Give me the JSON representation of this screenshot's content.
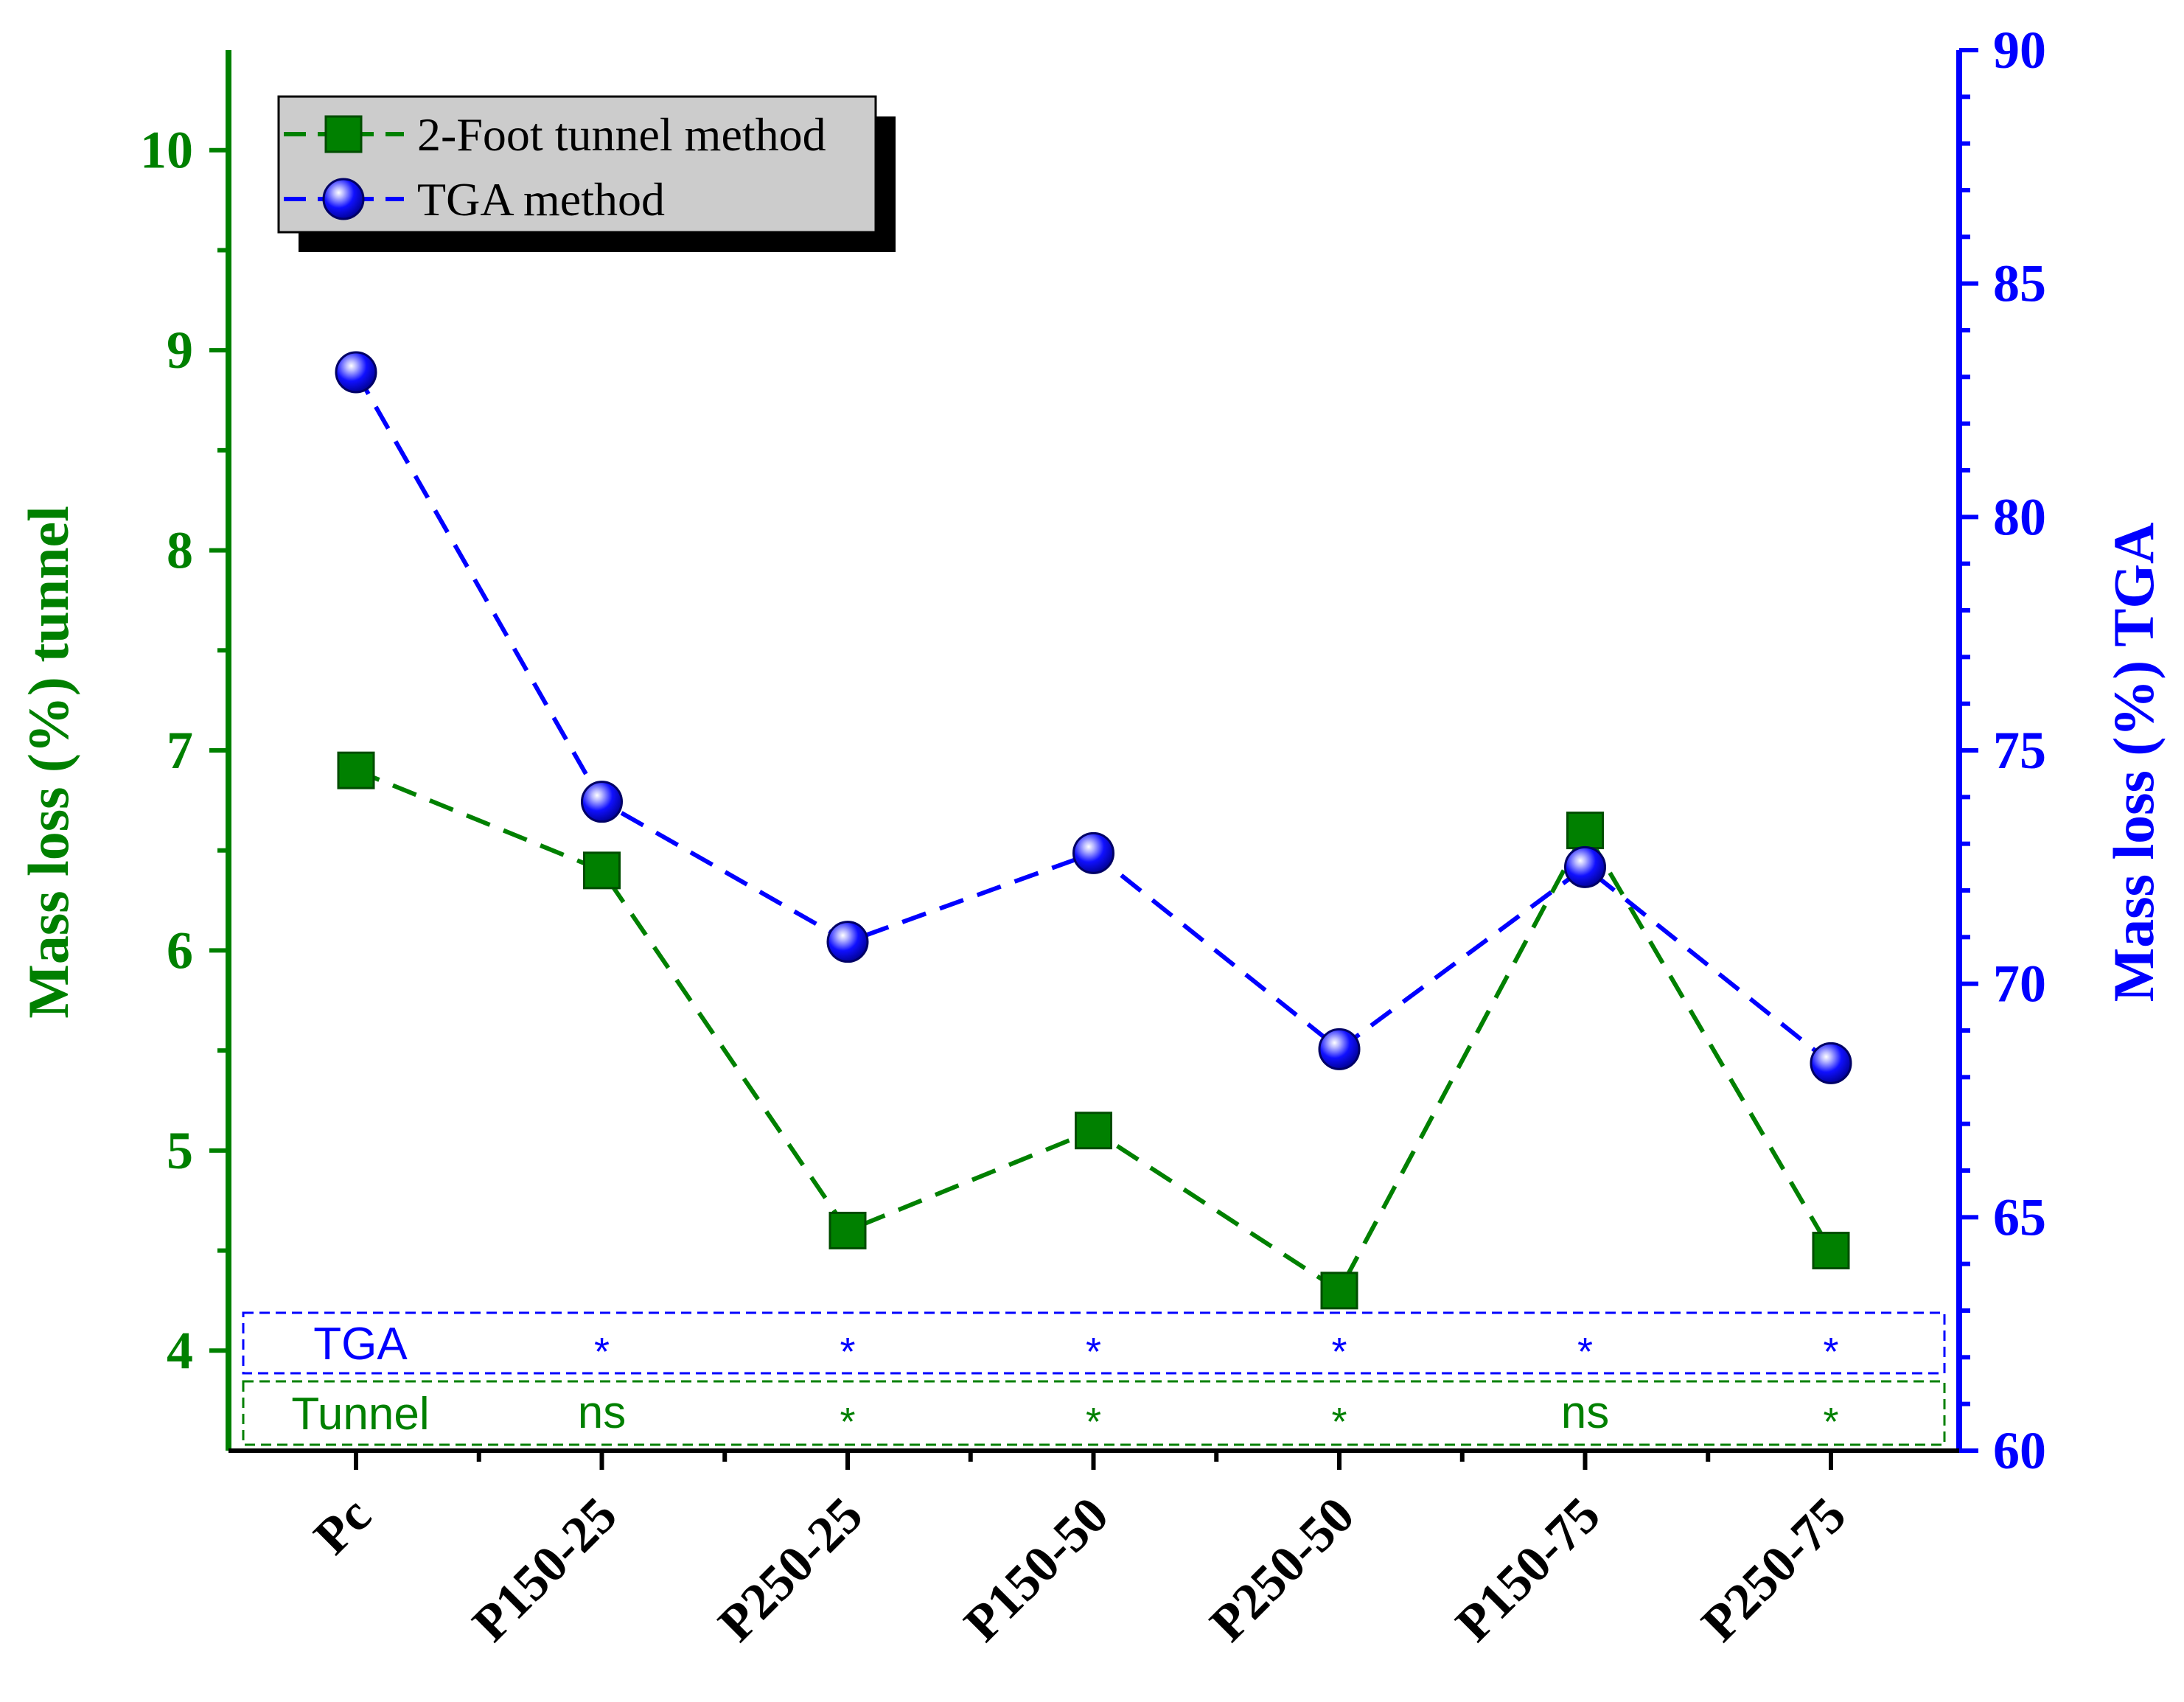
{
  "chart_data": {
    "type": "line",
    "categories": [
      "Pc",
      "P150-25",
      "P250-25",
      "P150-50",
      "P250-50",
      "P150-75",
      "P250-75"
    ],
    "y_left": {
      "label": "Mass loss (%) tunnel",
      "range": [
        3.5,
        10.5
      ],
      "ticks": [
        "4",
        "5",
        "6",
        "7",
        "8",
        "9",
        "10"
      ],
      "color": "#008000"
    },
    "y_right": {
      "label": "Mass loss (%) TGA",
      "range": [
        60,
        90
      ],
      "ticks": [
        "60",
        "65",
        "70",
        "75",
        "80",
        "85",
        "90"
      ],
      "color": "#0000ff"
    },
    "series": [
      {
        "name": "2-Foot tunnel method",
        "axis": "left",
        "marker": "square",
        "color": "#008000",
        "values": [
          6.9,
          6.4,
          4.6,
          5.1,
          4.3,
          6.6,
          4.5
        ]
      },
      {
        "name": "TGA method",
        "axis": "right",
        "marker": "sphere",
        "color": "#0000ff",
        "values": [
          83.1,
          73.9,
          70.9,
          72.8,
          68.6,
          72.5,
          68.3
        ]
      }
    ],
    "significance": {
      "rows": [
        {
          "label": "TGA",
          "color": "#0000ff",
          "marks": [
            "",
            "*",
            "*",
            "*",
            "*",
            "*",
            "*"
          ]
        },
        {
          "label": "Tunnel",
          "color": "#008000",
          "marks": [
            "",
            "ns",
            "*",
            "*",
            "*",
            "ns",
            "*"
          ]
        }
      ]
    },
    "grid": false,
    "legend_position": "top-left"
  }
}
